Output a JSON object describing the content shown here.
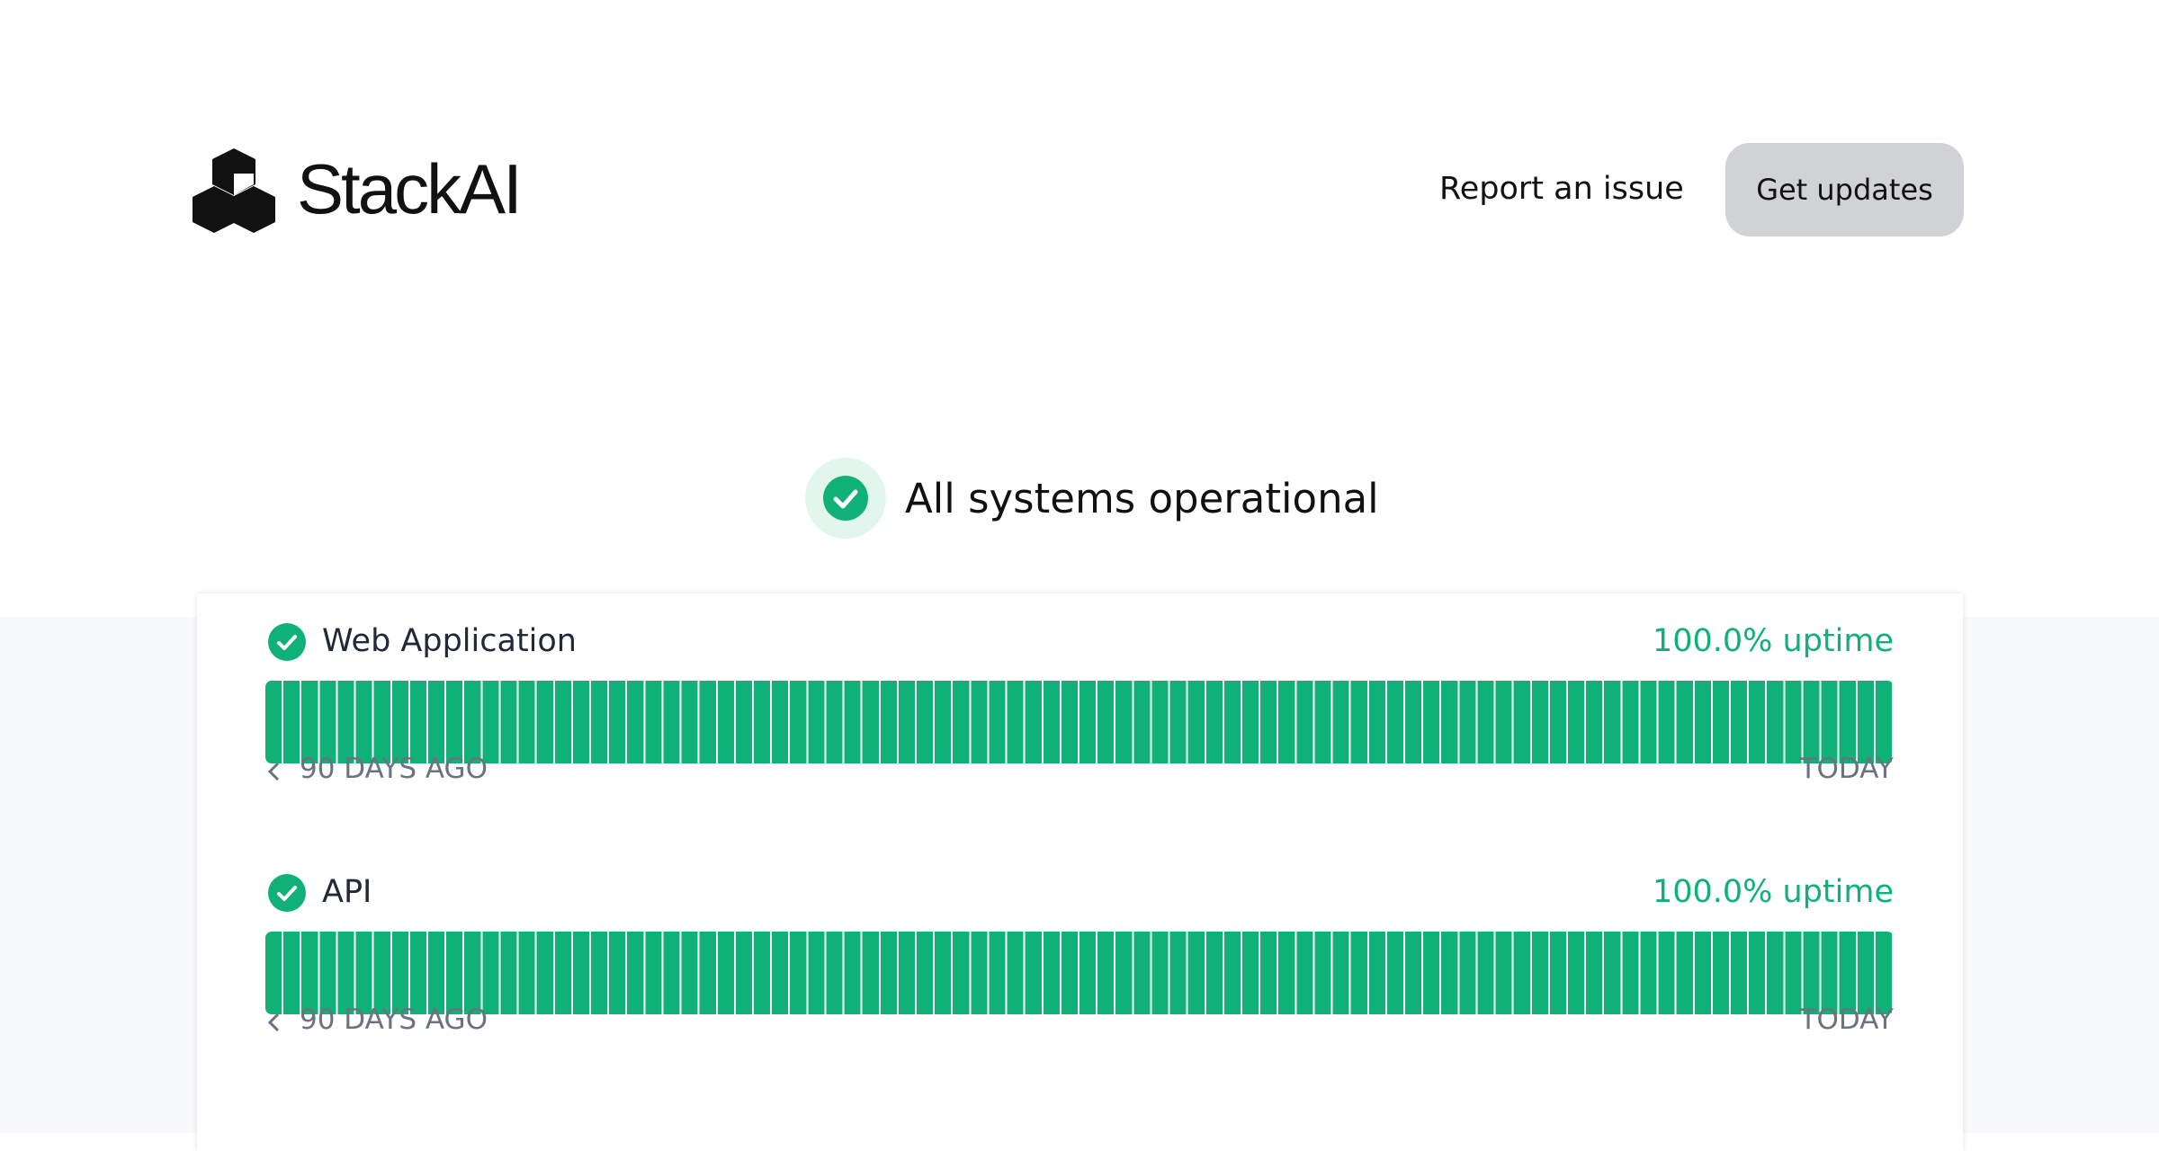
{
  "header": {
    "logo": "StackAI",
    "report": "Report an issue",
    "button": "Get updates"
  },
  "status": "All systems operational",
  "components": [
    {
      "name": "Web Application",
      "uptime": "100.0% uptime",
      "start": "90 DAYS AGO",
      "end": "TODAY"
    },
    {
      "name": "API",
      "uptime": "100.0% uptime",
      "start": "90 DAYS AGO",
      "end": "TODAY"
    }
  ]
}
